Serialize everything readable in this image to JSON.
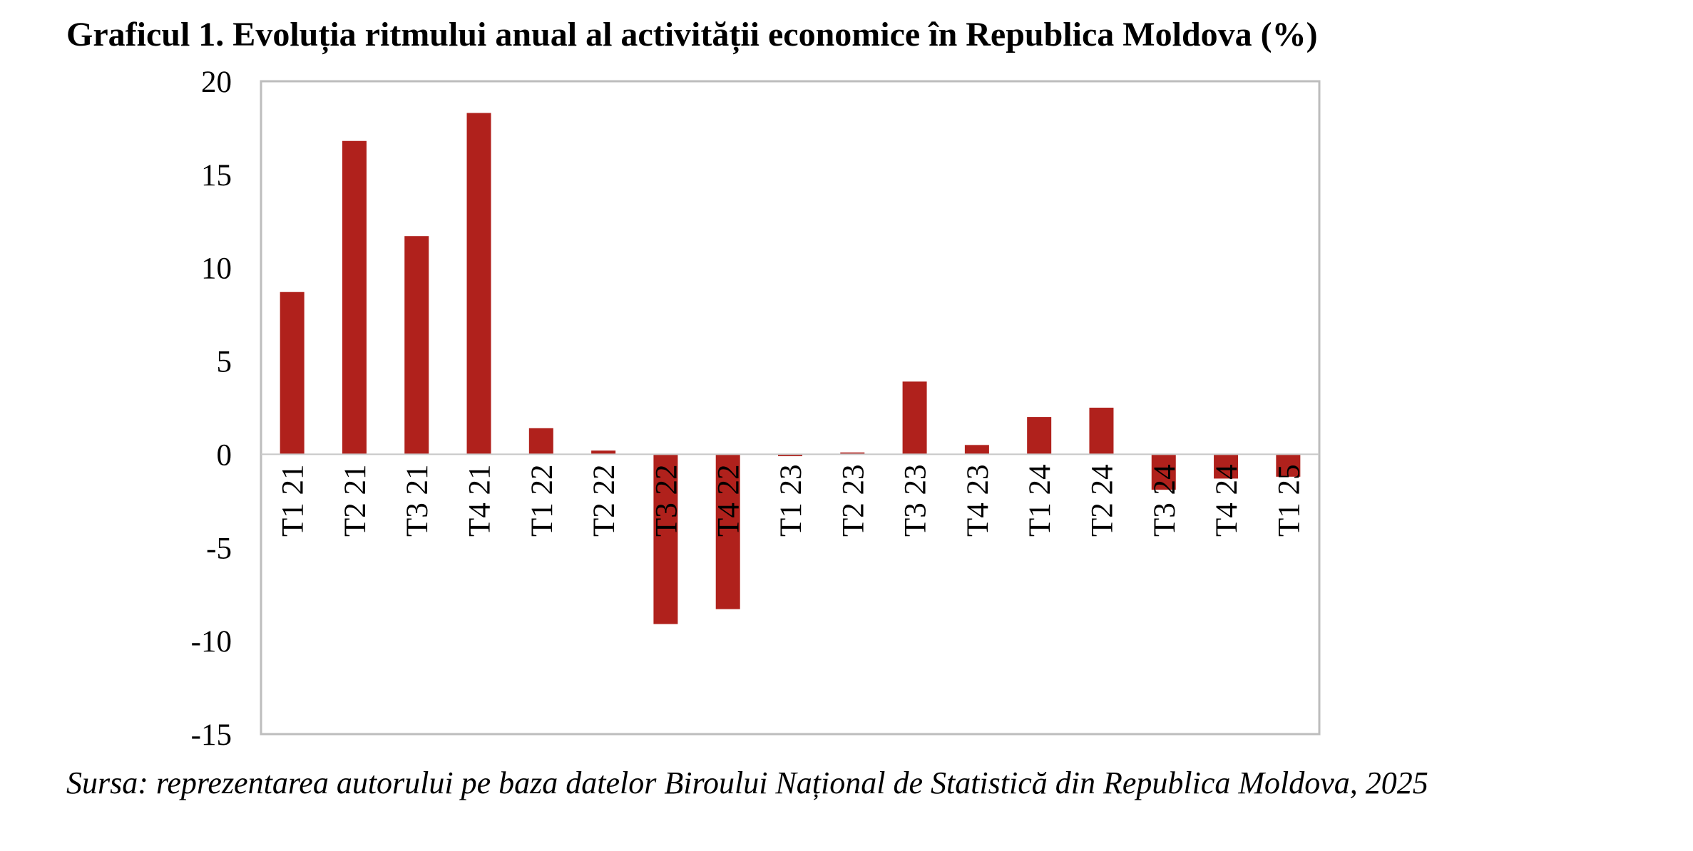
{
  "title": "Graficul 1. Evoluția ritmului anual al activității economice în Republica Moldova (%)",
  "source": "Sursa: reprezentarea autorului pe baza datelor Biroului Național de Statistică din Republica Moldova, 2025",
  "colors": {
    "bar": "#b0211c",
    "frame": "#bdbdbd",
    "zero_line": "#c8c8c8"
  },
  "chart_data": {
    "type": "bar",
    "title": "Graficul 1. Evoluția ritmului anual al activității economice în Republica Moldova (%)",
    "categories": [
      "T1 21",
      "T2 21",
      "T3 21",
      "T4 21",
      "T1 22",
      "T2 22",
      "T3 22",
      "T4 22",
      "T1 23",
      "T2 23",
      "T3 23",
      "T4 23",
      "T1 24",
      "T2 24",
      "T3 24",
      "T4 24",
      "T1 25"
    ],
    "values": [
      8.7,
      16.8,
      11.7,
      18.3,
      1.4,
      0.2,
      -9.1,
      -8.3,
      -0.1,
      0.1,
      3.9,
      0.5,
      2.0,
      2.5,
      -1.9,
      -1.3,
      -1.2
    ],
    "yticks": [
      "20",
      "15",
      "10",
      "5",
      "0",
      "-5",
      "-10",
      "-15"
    ],
    "ylim": [
      -15,
      20
    ],
    "xlabel": "",
    "ylabel": "",
    "grid": false,
    "legend": "none"
  }
}
